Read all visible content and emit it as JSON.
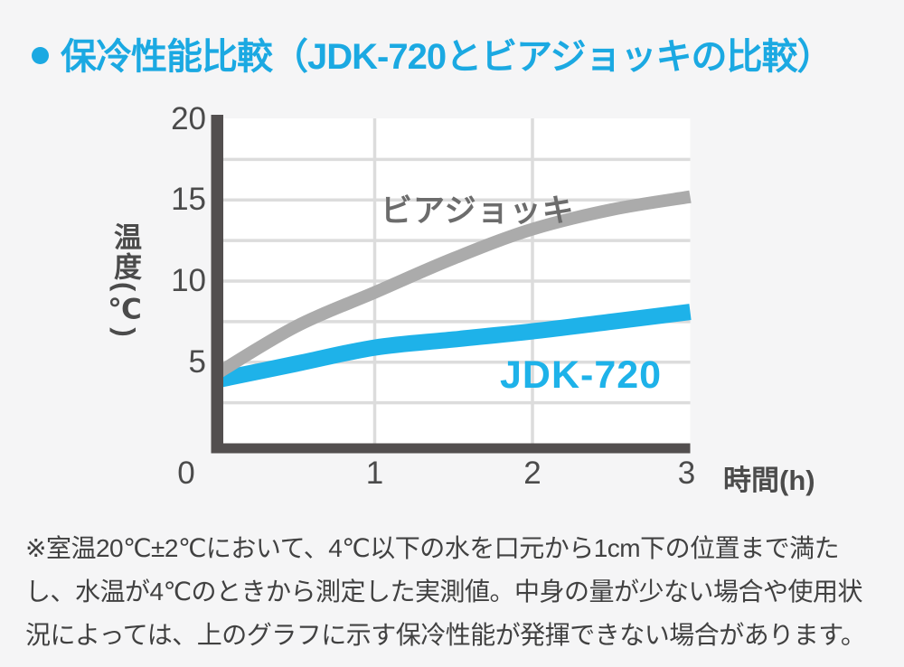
{
  "header": {
    "bullet_icon": "circle",
    "title": "保冷性能比較（JDK-720とビアジョッキの比較）"
  },
  "colors": {
    "accent_cyan": "#1BA9E2",
    "curve_cyan": "#1EB2E9",
    "curve_gray": "#ABABAB",
    "axis": "#534F4F",
    "gridline": "#DCDCDC",
    "tick_text": "#4B4B4B",
    "label_gray": "#6C6C6C",
    "background": "#F5F5F6",
    "plot_background": "#FFFFFF",
    "footnote_text": "#414141"
  },
  "chart_data": {
    "type": "line",
    "title": "保冷性能比較（JDK-720とビアジョッキの比較）",
    "xlabel": "時間(h)",
    "ylabel": "温度(℃)",
    "xlim": [
      0,
      3
    ],
    "ylim": [
      0,
      20
    ],
    "x_ticks": [
      0,
      1,
      2,
      3
    ],
    "y_ticks": [
      20,
      15,
      10,
      5
    ],
    "x_gridlines": [
      1,
      2
    ],
    "y_gridlines": [
      2.5,
      5,
      7.5,
      10,
      12.5,
      15,
      17.5
    ],
    "grid": true,
    "legend_position": "inline-labels",
    "x": [
      0,
      0.5,
      1,
      1.5,
      2,
      2.5,
      3
    ],
    "series": [
      {
        "name": "ビアジョッキ",
        "color": "#ABABAB",
        "values": [
          4.3,
          7.2,
          9.3,
          11.4,
          13.2,
          14.4,
          15.2
        ]
      },
      {
        "name": "JDK-720",
        "color": "#1EB2E9",
        "values": [
          3.9,
          4.9,
          5.9,
          6.4,
          6.9,
          7.5,
          8.1
        ]
      }
    ]
  },
  "footnote": {
    "lines": [
      "※室温20℃±2℃において、4℃以下の水を口元から1cm下の位置まで満た",
      "し、水温が4℃のときから測定した実測値。中身の量が少ない場合や使用状",
      "況によっては、上のグラフに示す保冷性能が発揮できない場合があります。"
    ]
  }
}
